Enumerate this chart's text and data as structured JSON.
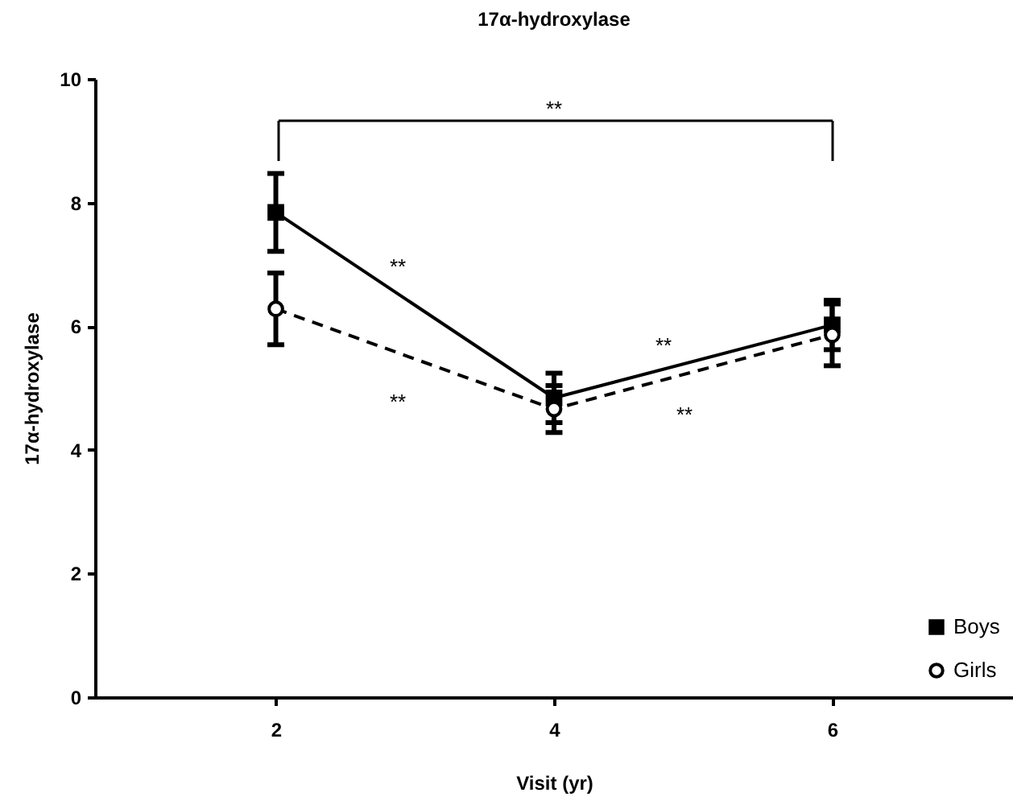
{
  "chart_data": {
    "type": "line",
    "title": "17α-hydroxylase",
    "xlabel": "Visit (yr)",
    "ylabel": "17α-hydroxylase",
    "x": [
      2,
      4,
      6
    ],
    "xlim": [
      0.7,
      7.3
    ],
    "xticks": [
      2,
      4,
      6
    ],
    "ylim": [
      0,
      10
    ],
    "yticks": [
      0,
      2,
      4,
      6,
      8,
      10
    ],
    "grid": false,
    "legend": "bottom right",
    "series": [
      {
        "name": "Boys",
        "color": "#000000",
        "values": [
          7.84,
          4.84,
          6.02
        ],
        "errors": [
          0.63,
          0.4,
          0.4
        ],
        "marker": "square",
        "line_style": "solid"
      },
      {
        "name": "Girls",
        "color": "#000000",
        "values": [
          6.28,
          4.66,
          5.86
        ],
        "errors": [
          0.58,
          0.38,
          0.5
        ],
        "marker": "circle",
        "line_style": "dashed"
      }
    ],
    "annotations": [
      "**",
      "**",
      "**",
      "**",
      "**"
    ]
  }
}
